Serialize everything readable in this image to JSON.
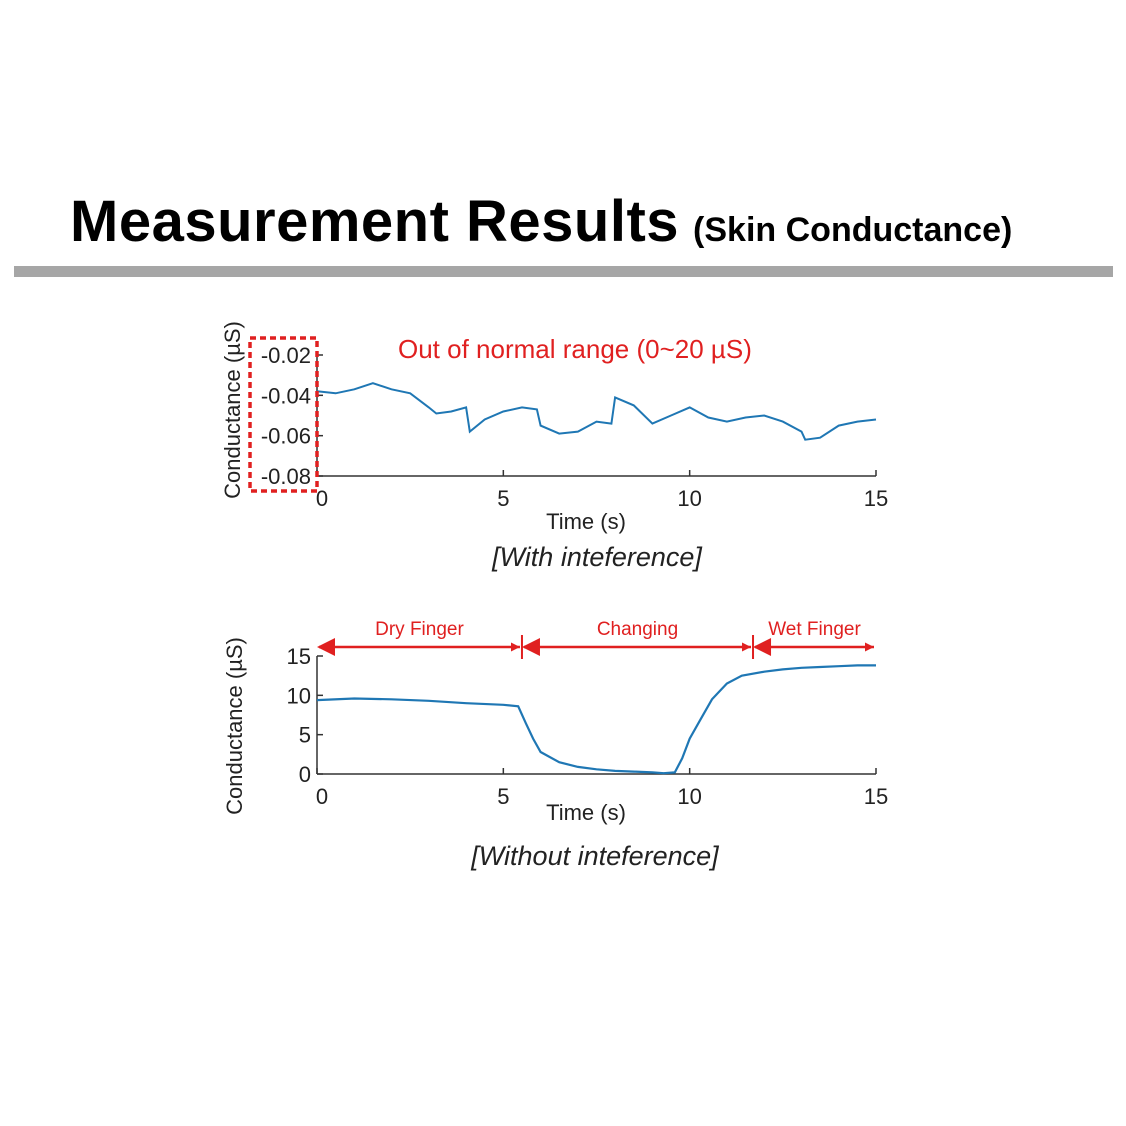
{
  "slide": {
    "title": "Measurement Results",
    "subtitle": "(Skin Conductance)",
    "accent_color": "#e02020",
    "line_color": "#1f77b4",
    "rule_color": "#a6a6a6"
  },
  "chart_data": [
    {
      "type": "line",
      "ylabel": "Conductance (µS)",
      "xlabel": "Time (s)",
      "caption": "[With inteference]",
      "annotation": "Out of normal range (0~20 µS)",
      "xlim": [
        0,
        15
      ],
      "ylim": [
        -0.08,
        -0.02
      ],
      "xticks": [
        "0",
        "5",
        "10",
        "15"
      ],
      "yticks": [
        "-0.02",
        "-0.04",
        "-0.06",
        "-0.08"
      ],
      "series": [
        {
          "x": [
            0,
            0.5,
            1,
            1.5,
            2,
            2.5,
            3,
            3.2,
            3.6,
            4,
            4.1,
            4.5,
            5,
            5.5,
            5.9,
            6,
            6.5,
            7,
            7.5,
            7.9,
            8,
            8.5,
            9,
            9.5,
            10,
            10.5,
            11,
            11.5,
            12,
            12.5,
            13,
            13.1,
            13.5,
            14,
            14.5,
            15
          ],
          "y": [
            -0.038,
            -0.039,
            -0.037,
            -0.034,
            -0.037,
            -0.039,
            -0.046,
            -0.049,
            -0.048,
            -0.046,
            -0.058,
            -0.052,
            -0.048,
            -0.046,
            -0.047,
            -0.055,
            -0.059,
            -0.058,
            -0.053,
            -0.054,
            -0.041,
            -0.045,
            -0.054,
            -0.05,
            -0.046,
            -0.051,
            -0.053,
            -0.051,
            -0.05,
            -0.053,
            -0.058,
            -0.062,
            -0.061,
            -0.055,
            -0.053,
            -0.052
          ]
        }
      ]
    },
    {
      "type": "line",
      "ylabel": "Conductance (µS)",
      "xlabel": "Time (s)",
      "caption": "[Without inteference]",
      "xlim": [
        0,
        15
      ],
      "ylim": [
        0,
        15
      ],
      "xticks": [
        "0",
        "5",
        "10",
        "15"
      ],
      "yticks": [
        "15",
        "10",
        "5",
        "0"
      ],
      "regions": [
        {
          "label": "Dry Finger",
          "start": 0,
          "end": 5.5
        },
        {
          "label": "Changing",
          "start": 5.5,
          "end": 11.7
        },
        {
          "label": "Wet Finger",
          "start": 11.7,
          "end": 15
        }
      ],
      "series": [
        {
          "x": [
            0,
            1,
            2,
            3,
            4,
            5,
            5.4,
            5.6,
            5.8,
            6,
            6.5,
            7,
            7.5,
            8,
            8.5,
            9,
            9.3,
            9.6,
            9.8,
            10,
            10.3,
            10.6,
            11,
            11.4,
            12,
            12.5,
            13,
            13.5,
            14,
            14.5,
            15
          ],
          "y": [
            9.4,
            9.6,
            9.5,
            9.3,
            9.0,
            8.8,
            8.6,
            6.5,
            4.5,
            2.8,
            1.5,
            0.9,
            0.6,
            0.4,
            0.3,
            0.2,
            0.1,
            0.2,
            2.0,
            4.5,
            7.0,
            9.5,
            11.5,
            12.5,
            13.0,
            13.3,
            13.5,
            13.6,
            13.7,
            13.8,
            13.8
          ]
        }
      ]
    }
  ]
}
